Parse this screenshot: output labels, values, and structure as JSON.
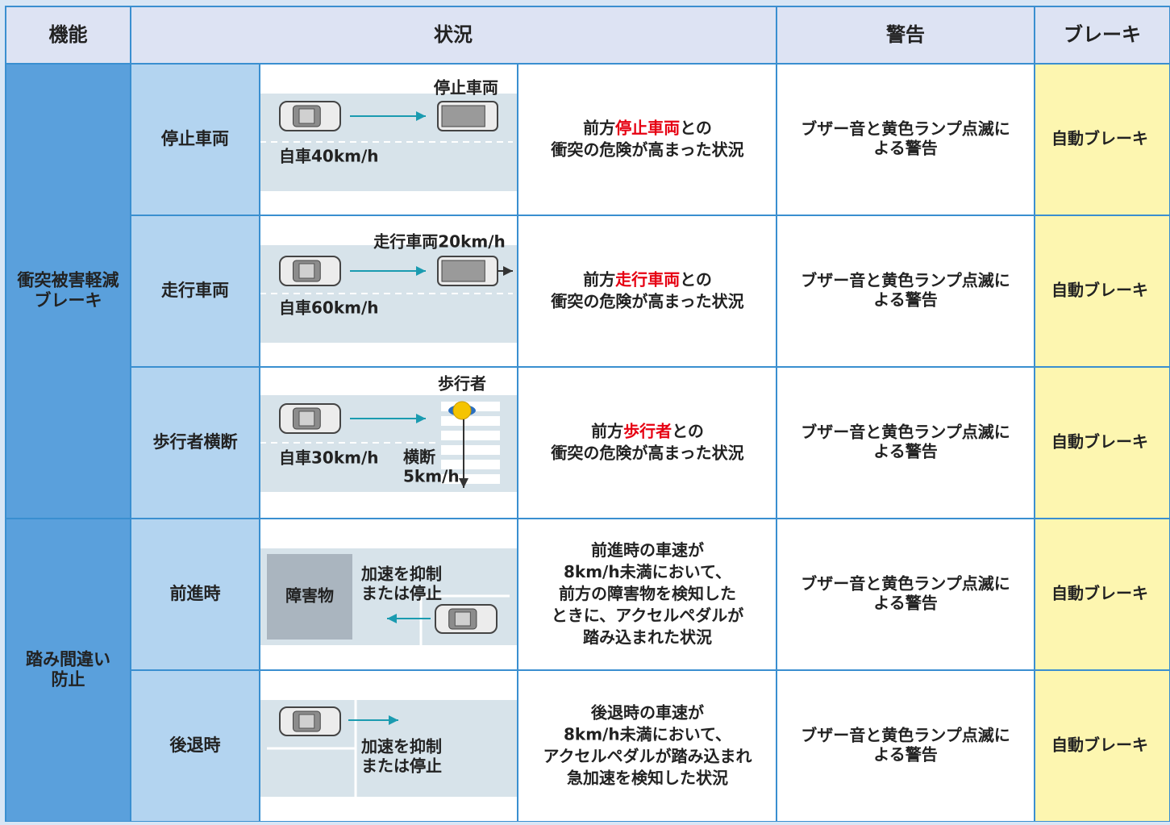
{
  "header": {
    "cells": [
      "機能",
      "状況",
      "警告",
      "ブレーキ"
    ]
  },
  "groups": [
    {
      "label": [
        "衝突被害軽減",
        "ブレーキ"
      ],
      "rows": [
        {
          "name": "停止車両",
          "diagram": [
            "停止車両",
            "自車40km/h"
          ],
          "situation": [
            [
              {
                "text": "前方"
              },
              {
                "text": "停止車両",
                "color": "#e60012"
              },
              {
                "text": "との"
              }
            ],
            [
              {
                "text": "衝突の危険が高まった状況"
              }
            ]
          ],
          "warning": [
            "ブザー音と黄色ランプ点滅に",
            "よる警告"
          ],
          "brake": "自動ブレーキ"
        },
        {
          "name": "走行車両",
          "diagram": [
            "走行車両20km/h",
            "自車60km/h"
          ],
          "situation": [
            [
              {
                "text": "前方"
              },
              {
                "text": "走行車両",
                "color": "#e60012"
              },
              {
                "text": "との"
              }
            ],
            [
              {
                "text": "衝突の危険が高まった状況"
              }
            ]
          ],
          "warning": [
            "ブザー音と黄色ランプ点滅に",
            "よる警告"
          ],
          "brake": "自動ブレーキ"
        },
        {
          "name": "歩行者横断",
          "diagram": [
            "歩行者",
            "自車30km/h",
            "横断",
            "5km/h"
          ],
          "situation": [
            [
              {
                "text": "前方"
              },
              {
                "text": "歩行者",
                "color": "#e60012"
              },
              {
                "text": "との"
              }
            ],
            [
              {
                "text": "衝突の危険が高まった状況"
              }
            ]
          ],
          "warning": [
            "ブザー音と黄色ランプ点滅に",
            "よる警告"
          ],
          "brake": "自動ブレーキ"
        }
      ]
    },
    {
      "label": [
        "踏み間違い",
        "防止"
      ],
      "rows": [
        {
          "name": "前進時",
          "diagram": [
            "障害物",
            "加速を抑制",
            "または停止"
          ],
          "situation": [
            [
              {
                "text": "前進時の車速が"
              }
            ],
            [
              {
                "text": "8km/h未満において、"
              }
            ],
            [
              {
                "text": "前方の障害物を検知した"
              }
            ],
            [
              {
                "text": "ときに、アクセルペダルが"
              }
            ],
            [
              {
                "text": "踏み込まれた状況"
              }
            ]
          ],
          "warning": [
            "ブザー音と黄色ランプ点滅に",
            "よる警告"
          ],
          "brake": "自動ブレーキ"
        },
        {
          "name": "後退時",
          "diagram": [
            "加速を抑制",
            "または停止"
          ],
          "situation": [
            [
              {
                "text": "後退時の車速が"
              }
            ],
            [
              {
                "text": "8km/h未満において、"
              }
            ],
            [
              {
                "text": "アクセルペダルが踏み込まれ"
              }
            ],
            [
              {
                "text": "急加速を検知した状況"
              }
            ]
          ],
          "warning": [
            "ブザー音と黄色ランプ点滅に",
            "よる警告"
          ],
          "brake": "自動ブレーキ"
        }
      ]
    }
  ]
}
